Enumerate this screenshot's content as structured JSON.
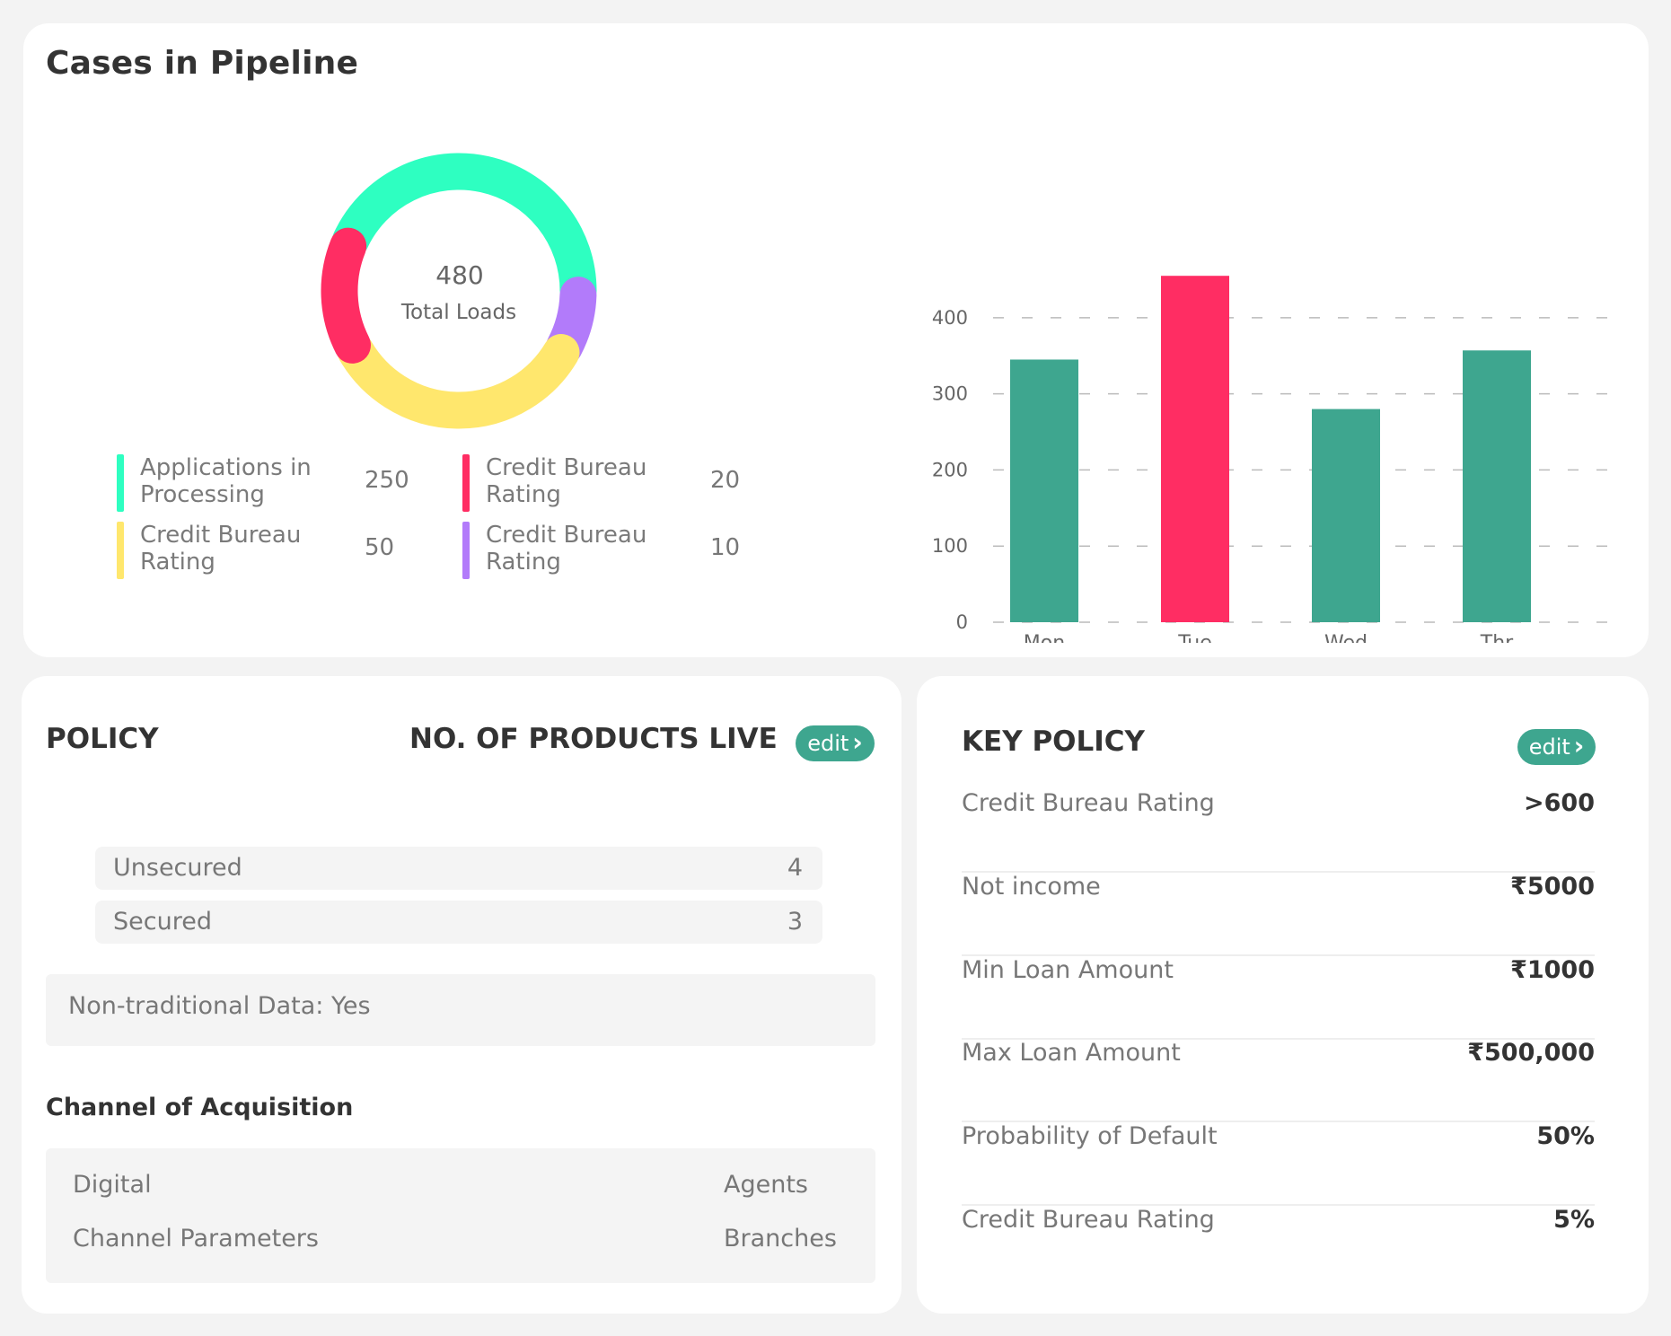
{
  "pipeline": {
    "title": "Cases in Pipeline",
    "total_value": "480",
    "total_label": "Total Loads",
    "legend": [
      {
        "label": "Applications in Processing",
        "value": "250",
        "color": "#2effc1"
      },
      {
        "label": "Credit Bureau Rating",
        "value": "20",
        "color": "#ff2d63"
      },
      {
        "label": "Credit Bureau Rating",
        "value": "50",
        "color": "#ffe76d"
      },
      {
        "label": "Credit Bureau Rating",
        "value": "10",
        "color": "#b27bfa"
      }
    ]
  },
  "chart_data": {
    "type": "bar",
    "categories": [
      "Mon",
      "Tue",
      "Wed",
      "Thr"
    ],
    "values": [
      345,
      455,
      280,
      357
    ],
    "colors": [
      "#3ea68f",
      "#ff2d63",
      "#3ea68f",
      "#3ea68f"
    ],
    "yticks": [
      0,
      100,
      200,
      300,
      400
    ],
    "ylim": [
      0,
      480
    ],
    "grid": "dashed-horizontal"
  },
  "policy": {
    "title": "POLICY",
    "products_title": "NO. OF PRODUCTS LIVE",
    "edit_label": "edit",
    "products": [
      {
        "label": "Unsecured",
        "value": "4"
      },
      {
        "label": "Secured",
        "value": "3"
      }
    ],
    "non_traditional": "Non-traditional Data: Yes",
    "channel_title": "Channel of Acquisition",
    "channels": {
      "left_1": "Digital",
      "left_2": "Channel Parameters",
      "right_1": "Agents",
      "right_2": "Branches"
    }
  },
  "key_policy": {
    "title": "KEY POLICY",
    "edit_label": "edit",
    "items": [
      {
        "label": "Credit Bureau Rating",
        "value": ">600"
      },
      {
        "label": "Not income",
        "value": "₹5000"
      },
      {
        "label": "Min Loan Amount",
        "value": "₹1000"
      },
      {
        "label": "Max Loan Amount",
        "value": "₹500,000"
      },
      {
        "label": "Probability of Default",
        "value": "50%"
      },
      {
        "label": "Credit Bureau Rating",
        "value": "5%"
      }
    ]
  }
}
